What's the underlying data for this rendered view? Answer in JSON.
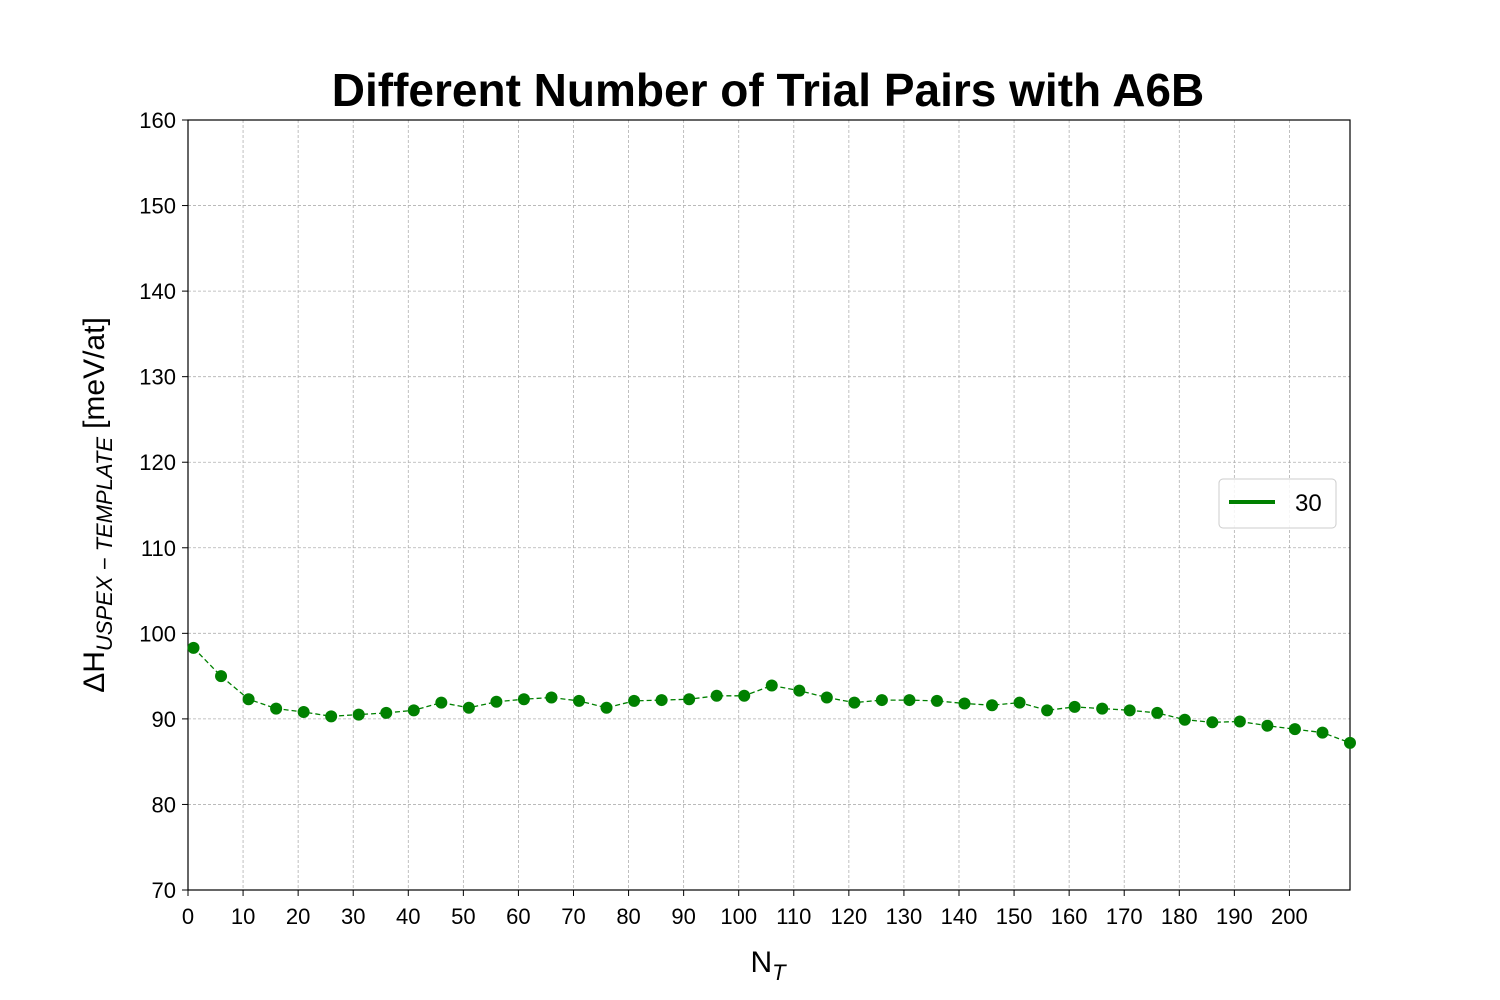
{
  "chart_data": {
    "type": "line",
    "title": "Different Number of Trial Pairs with A6B",
    "xlabel": {
      "main": "N",
      "sub": "T"
    },
    "ylabel": {
      "prefix": "ΔH",
      "sub": "USPEX − TEMPLATE",
      "unit": "[meV/at]"
    },
    "xlim": [
      0,
      211
    ],
    "ylim": [
      70,
      160
    ],
    "xticks": [
      0,
      10,
      20,
      30,
      40,
      50,
      60,
      70,
      80,
      90,
      100,
      110,
      120,
      130,
      140,
      150,
      160,
      170,
      180,
      190,
      200
    ],
    "yticks": [
      70,
      80,
      90,
      100,
      110,
      120,
      130,
      140,
      150,
      160
    ],
    "grid": true,
    "legend": "center-right",
    "series": [
      {
        "name": "30",
        "color": "#008000",
        "x": [
          1,
          6,
          11,
          16,
          21,
          26,
          31,
          36,
          41,
          46,
          51,
          56,
          61,
          66,
          71,
          76,
          81,
          86,
          91,
          96,
          101,
          106,
          111,
          116,
          121,
          126,
          131,
          136,
          141,
          146,
          151,
          156,
          161,
          166,
          171,
          176,
          181,
          186,
          191,
          196,
          201,
          206,
          211
        ],
        "y": [
          98.3,
          95.0,
          92.3,
          91.2,
          90.8,
          90.3,
          90.5,
          90.7,
          91.0,
          91.9,
          91.3,
          92.0,
          92.3,
          92.5,
          92.1,
          91.3,
          92.1,
          92.2,
          92.3,
          92.7,
          92.7,
          93.9,
          93.3,
          92.5,
          91.9,
          92.2,
          92.2,
          92.1,
          91.8,
          91.6,
          91.9,
          91.0,
          91.4,
          91.2,
          91.0,
          90.7,
          89.9,
          89.6,
          89.7,
          89.2,
          88.8,
          88.4,
          87.2
        ]
      }
    ]
  }
}
